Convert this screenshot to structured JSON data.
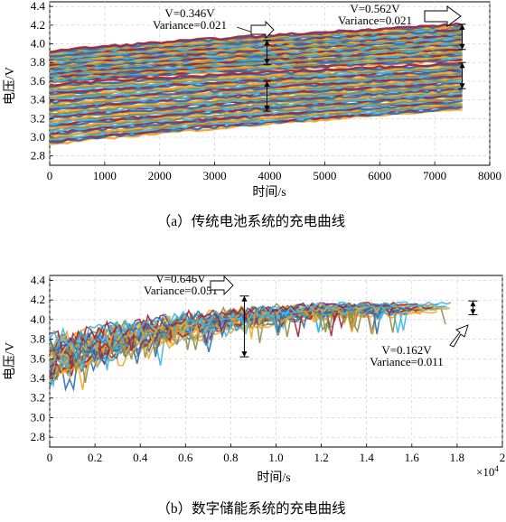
{
  "chart_data": [
    {
      "type": "line",
      "caption": "（a）传统电池系统的充电曲线",
      "xlabel": "时间/s",
      "ylabel": "电压/V",
      "xlim": [
        0,
        8000
      ],
      "ylim": [
        2.7,
        4.45
      ],
      "xticks": [
        "0",
        "1000",
        "2000",
        "3000",
        "4000",
        "5000",
        "6000",
        "7000",
        "8000"
      ],
      "yticks": [
        "2.8",
        "3.0",
        "3.2",
        "3.4",
        "3.6",
        "3.8",
        "4.0",
        "4.2",
        "4.4"
      ],
      "grid": true,
      "series_colors": [
        "#f5a623",
        "#2f6db5",
        "#a0283c",
        "#3fb7e6",
        "#8a8f4e"
      ],
      "bands": [
        {
          "t_end": 7500,
          "low": [
            3.58,
            3.92
          ],
          "high": [
            3.82,
            4.21
          ]
        },
        {
          "t_end": 7500,
          "low": [
            2.92,
            3.56
          ],
          "high": [
            3.3,
            3.79
          ]
        }
      ],
      "annotations": [
        {
          "lines": [
            "V=0.346V",
            "Variance=0.021"
          ],
          "x": 3950,
          "range": [
            3.78,
            4.04
          ]
        },
        {
          "lines": [
            "V=0.562V",
            "Variance=0.021"
          ],
          "x": 7500,
          "range": [
            3.94,
            4.21
          ]
        },
        {
          "x": 3950,
          "range": [
            3.28,
            3.6
          ]
        },
        {
          "x": 7500,
          "range": [
            3.52,
            3.8
          ]
        }
      ]
    },
    {
      "type": "line",
      "caption": "（b）数字储能系统的充电曲线",
      "xlabel": "时间/s",
      "ylabel": "电压/V",
      "x_exponent": "×10",
      "x_exponent_power": "4",
      "xlim": [
        0,
        2.0
      ],
      "ylim": [
        2.7,
        4.45
      ],
      "xticks": [
        "0",
        "0.2",
        "0.4",
        "0.6",
        "0.8",
        "1.0",
        "1.2",
        "1.4",
        "1.6",
        "1.8",
        "2"
      ],
      "yticks": [
        "2.8",
        "3.0",
        "3.2",
        "3.4",
        "3.6",
        "3.8",
        "4.0",
        "4.2",
        "4.4"
      ],
      "grid": true,
      "series_colors": [
        "#f5a623",
        "#2f6db5",
        "#a0283c",
        "#3fb7e6",
        "#8a8f4e"
      ],
      "band": {
        "start": [
          3.4,
          3.78
        ],
        "converge_at": 1.8,
        "end": [
          4.06,
          4.16
        ]
      },
      "annotations": [
        {
          "lines": [
            "V=0.646V",
            "Variance=0.051"
          ],
          "x": 0.86,
          "range": [
            3.62,
            4.24
          ]
        },
        {
          "lines": [
            "V=0.162V",
            "Variance=0.011"
          ],
          "x": 1.87,
          "range": [
            4.05,
            4.19
          ]
        }
      ]
    }
  ]
}
